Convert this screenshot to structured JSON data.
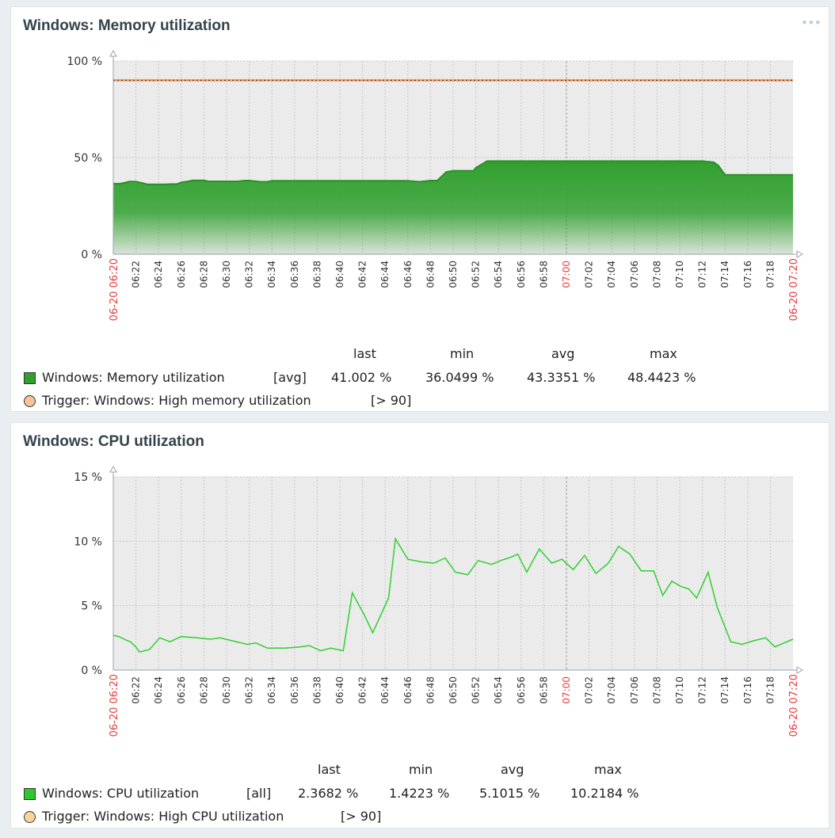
{
  "widgets": {
    "memory": {
      "title": "Windows: Memory utilization",
      "legend": {
        "headers": {
          "last": "last",
          "min": "min",
          "avg": "avg",
          "max": "max"
        },
        "item": {
          "name": "Windows: Memory utilization",
          "func": "[avg]",
          "last": "41.002 %",
          "min": "36.0499 %",
          "avg": "43.3351 %",
          "max": "48.4423 %",
          "color": "#31a02f"
        },
        "trigger": {
          "name": "Trigger: Windows: High memory utilization",
          "cond": "[> 90]",
          "color": "#f7c39a"
        }
      }
    },
    "cpu": {
      "title": "Windows: CPU utilization",
      "legend": {
        "headers": {
          "last": "last",
          "min": "min",
          "avg": "avg",
          "max": "max"
        },
        "item": {
          "name": "Windows: CPU utilization",
          "func": "[all]",
          "last": "2.3682 %",
          "min": "1.4223 %",
          "avg": "5.1015 %",
          "max": "10.2184 %",
          "color": "#2fc52f"
        },
        "trigger": {
          "name": "Trigger: Windows: High CPU utilization",
          "cond": "[> 90]",
          "color": "#f9d59a"
        }
      }
    }
  },
  "chart_data": [
    {
      "type": "area",
      "title": "Windows: Memory utilization",
      "y_ticks": [
        "0 %",
        "50 %",
        "100 %"
      ],
      "ylim": [
        0,
        100
      ],
      "x_minutes": [
        0,
        60
      ],
      "x_tick_labels": [
        "06:22",
        "06:24",
        "06:26",
        "06:28",
        "06:30",
        "06:32",
        "06:34",
        "06:36",
        "06:38",
        "06:40",
        "06:42",
        "06:44",
        "06:46",
        "06:48",
        "06:50",
        "06:52",
        "06:54",
        "06:56",
        "06:58",
        "07:00",
        "07:02",
        "07:04",
        "07:06",
        "07:08",
        "07:10",
        "07:12",
        "07:14",
        "07:16",
        "07:18"
      ],
      "x_edge_labels": [
        "06-20 06:20",
        "06-20 07:20"
      ],
      "highlight_label": "07:00",
      "grid": true,
      "threshold": {
        "value": 90,
        "color": "#f5a26a"
      },
      "series": [
        {
          "name": "Windows: Memory utilization",
          "color": "#31a02f",
          "points": [
            [
              0,
              36.5
            ],
            [
              0.6,
              36.5
            ],
            [
              1,
              37
            ],
            [
              1.4,
              37.6
            ],
            [
              2,
              37.6
            ],
            [
              2.6,
              36.8
            ],
            [
              3,
              36.2
            ],
            [
              4,
              36.2
            ],
            [
              4.6,
              36.2
            ],
            [
              5,
              36.3
            ],
            [
              5.6,
              36.3
            ],
            [
              6,
              37.2
            ],
            [
              6.6,
              37.7
            ],
            [
              7,
              38.2
            ],
            [
              8,
              38.2
            ],
            [
              8.4,
              37.7
            ],
            [
              9,
              37.7
            ],
            [
              9.6,
              37.7
            ],
            [
              11,
              37.7
            ],
            [
              11.6,
              38.1
            ],
            [
              12,
              38.1
            ],
            [
              13,
              37.5
            ],
            [
              13.6,
              37.5
            ],
            [
              14,
              38
            ],
            [
              26,
              38
            ],
            [
              27,
              37.5
            ],
            [
              28,
              38.1
            ],
            [
              28.6,
              38.1
            ],
            [
              29.4,
              42.6
            ],
            [
              30,
              43.2
            ],
            [
              31,
              43.2
            ],
            [
              31.8,
              43.2
            ],
            [
              32,
              44.7
            ],
            [
              33,
              48.2
            ],
            [
              52,
              48.2
            ],
            [
              53,
              47.6
            ],
            [
              53.4,
              46
            ],
            [
              54,
              41.1
            ],
            [
              60,
              41.1
            ]
          ]
        }
      ]
    },
    {
      "type": "line",
      "title": "Windows: CPU utilization",
      "y_ticks": [
        "0 %",
        "5 %",
        "10 %",
        "15 %"
      ],
      "ylim": [
        0,
        15
      ],
      "x_minutes": [
        0,
        60
      ],
      "x_tick_labels": [
        "06:22",
        "06:24",
        "06:26",
        "06:28",
        "06:30",
        "06:32",
        "06:34",
        "06:36",
        "06:38",
        "06:40",
        "06:42",
        "06:44",
        "06:46",
        "06:48",
        "06:50",
        "06:52",
        "06:54",
        "06:56",
        "06:58",
        "07:00",
        "07:02",
        "07:04",
        "07:06",
        "07:08",
        "07:10",
        "07:12",
        "07:14",
        "07:16",
        "07:18"
      ],
      "x_edge_labels": [
        "06-20 06:20",
        "06-20 07:20"
      ],
      "highlight_label": "07:00",
      "grid": true,
      "series": [
        {
          "name": "Windows: CPU utilization",
          "color": "#2fd02f",
          "points": [
            [
              0,
              2.7
            ],
            [
              0.5,
              2.6
            ],
            [
              1.2,
              2.3
            ],
            [
              1.5,
              2.2
            ],
            [
              2,
              1.8
            ],
            [
              2.3,
              1.4
            ],
            [
              3.2,
              1.6
            ],
            [
              4.1,
              2.5
            ],
            [
              5,
              2.2
            ],
            [
              6,
              2.6
            ],
            [
              7.4,
              2.5
            ],
            [
              8.6,
              2.4
            ],
            [
              9.4,
              2.5
            ],
            [
              10.4,
              2.3
            ],
            [
              11.8,
              2.0
            ],
            [
              12.6,
              2.1
            ],
            [
              13.6,
              1.7
            ],
            [
              15.2,
              1.7
            ],
            [
              16.5,
              1.8
            ],
            [
              17.3,
              1.9
            ],
            [
              18.3,
              1.5
            ],
            [
              19.2,
              1.7
            ],
            [
              20.3,
              1.5
            ],
            [
              21.1,
              6.0
            ],
            [
              22.2,
              4.2
            ],
            [
              22.9,
              2.9
            ],
            [
              24.3,
              5.6
            ],
            [
              24.9,
              10.2
            ],
            [
              26,
              8.6
            ],
            [
              27.2,
              8.4
            ],
            [
              28.3,
              8.3
            ],
            [
              29.3,
              8.7
            ],
            [
              30.2,
              7.6
            ],
            [
              31.3,
              7.4
            ],
            [
              32.2,
              8.5
            ],
            [
              33.4,
              8.2
            ],
            [
              34.2,
              8.5
            ],
            [
              35.2,
              8.8
            ],
            [
              35.7,
              9.0
            ],
            [
              36.5,
              7.6
            ],
            [
              37.6,
              9.4
            ],
            [
              38.7,
              8.3
            ],
            [
              39.6,
              8.6
            ],
            [
              40.6,
              7.8
            ],
            [
              41.6,
              8.9
            ],
            [
              42.6,
              7.5
            ],
            [
              43.7,
              8.3
            ],
            [
              44.6,
              9.6
            ],
            [
              45.6,
              9.0
            ],
            [
              46.6,
              7.7
            ],
            [
              47.7,
              7.7
            ],
            [
              48.5,
              5.8
            ],
            [
              49.3,
              6.9
            ],
            [
              50.1,
              6.5
            ],
            [
              50.8,
              6.3
            ],
            [
              51.5,
              5.6
            ],
            [
              52.5,
              7.6
            ],
            [
              53.3,
              4.9
            ],
            [
              54.5,
              2.2
            ],
            [
              55.5,
              2.0
            ],
            [
              56.6,
              2.3
            ],
            [
              57.6,
              2.5
            ],
            [
              58.4,
              1.8
            ],
            [
              59.2,
              2.1
            ],
            [
              60,
              2.4
            ]
          ]
        }
      ]
    }
  ]
}
